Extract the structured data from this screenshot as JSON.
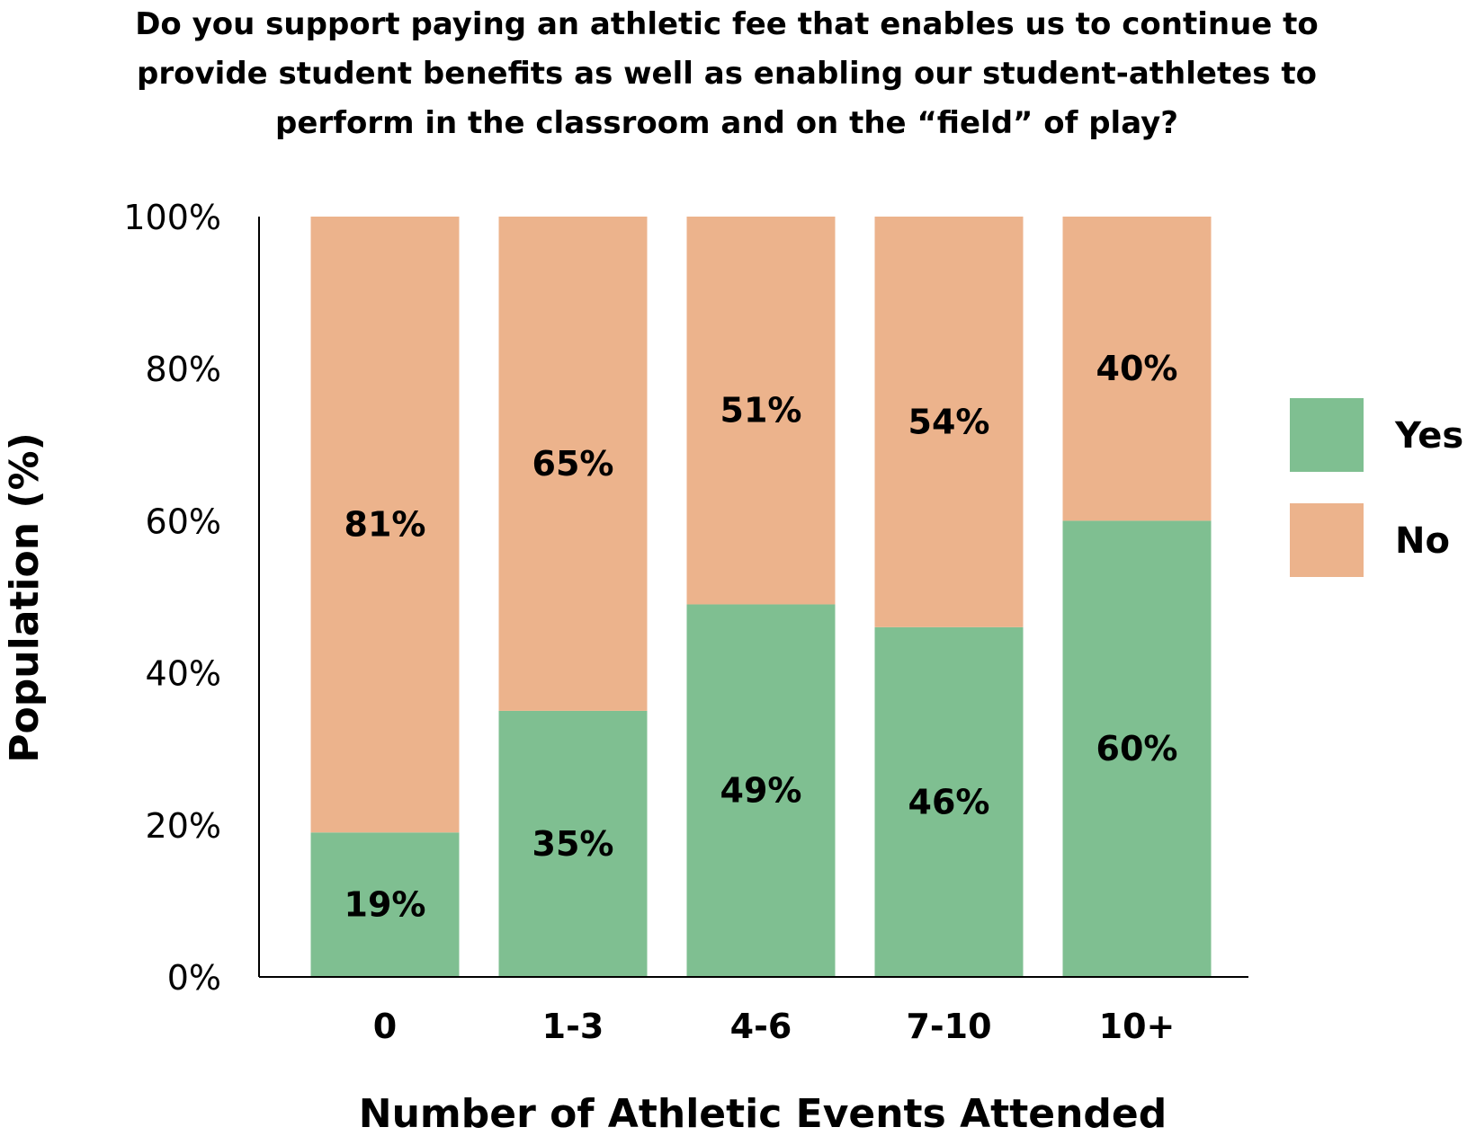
{
  "chart_data": {
    "type": "bar",
    "stacked": true,
    "title_lines": [
      "Do you support paying an athletic fee that enables us to continue to",
      "provide student benefits as well as enabling our student-athletes to",
      "perform in the classroom and on the “field” of play?"
    ],
    "xlabel": "Number of Athletic Events Attended",
    "ylabel": "Population (%)",
    "ylim": [
      0,
      100
    ],
    "yticks": [
      "0%",
      "20%",
      "40%",
      "60%",
      "80%",
      "100%"
    ],
    "categories": [
      "0",
      "1-3",
      "4-6",
      "7-10",
      "10+"
    ],
    "series": [
      {
        "name": "Yes",
        "color": "#7fbf91",
        "values": [
          19,
          35,
          49,
          46,
          60
        ],
        "labels": [
          "19%",
          "35%",
          "49%",
          "46%",
          "60%"
        ]
      },
      {
        "name": "No",
        "color": "#ecb38c",
        "values": [
          81,
          65,
          51,
          54,
          40
        ],
        "labels": [
          "81%",
          "65%",
          "51%",
          "54%",
          "40%"
        ]
      }
    ],
    "legend_position": "right",
    "grid": false
  }
}
